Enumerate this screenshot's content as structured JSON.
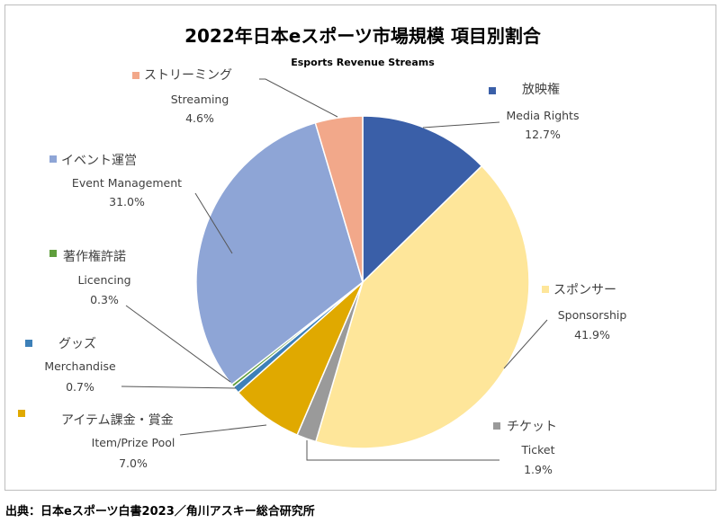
{
  "chart_data": {
    "type": "pie",
    "title": "2022年日本eスポーツ市場規模 項目別割合",
    "subtitle": "Esports Revenue Streams",
    "start": "12 o'clock, clockwise",
    "slices": [
      {
        "label_ja": "放映権",
        "label_en": "Media Rights",
        "value": 12.7,
        "pct": "12.7%",
        "color": "#3a5fa8"
      },
      {
        "label_ja": "スポンサー",
        "label_en": "Sponsorship",
        "value": 41.9,
        "pct": "41.9%",
        "color": "#fee69a"
      },
      {
        "label_ja": "チケット",
        "label_en": "Ticket",
        "value": 1.9,
        "pct": "1.9%",
        "color": "#9a9a9a"
      },
      {
        "label_ja": "アイテム課金・賞金",
        "label_en": "Item/Prize Pool",
        "value": 7.0,
        "pct": "7.0%",
        "color": "#e0a900"
      },
      {
        "label_ja": "グッズ",
        "label_en": "Merchandise",
        "value": 0.7,
        "pct": "0.7%",
        "color": "#3d80b8"
      },
      {
        "label_ja": "著作権許諾",
        "label_en": "Licencing",
        "value": 0.3,
        "pct": "0.3%",
        "color": "#5f9e3c"
      },
      {
        "label_ja": "イベント運営",
        "label_en": "Event Management",
        "value": 31.0,
        "pct": "31.0%",
        "color": "#8ea5d6"
      },
      {
        "label_ja": "ストリーミング",
        "label_en": "Streaming",
        "value": 4.6,
        "pct": "4.6%",
        "color": "#f2a88a"
      }
    ]
  },
  "footer": "出典：日本eスポーツ白書2023／角川アスキー総合研究所"
}
